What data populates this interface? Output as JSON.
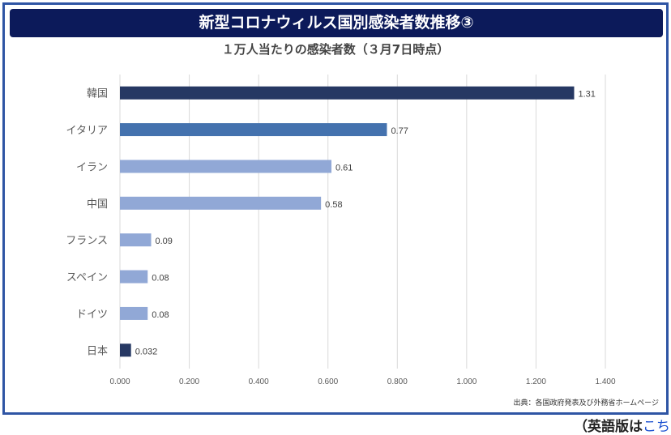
{
  "title": "新型コロナウィルス国別感染者数推移③",
  "footer": {
    "text": "（英語版は",
    "link": "こちら"
  },
  "chart_data": {
    "type": "bar",
    "orientation": "horizontal",
    "title": "１万人当たりの感染者数（３月7日時点）",
    "categories": [
      "韓国",
      "イタリア",
      "イラン",
      "中国",
      "フランス",
      "スペイン",
      "ドイツ",
      "日本"
    ],
    "values": [
      1.31,
      0.77,
      0.61,
      0.58,
      0.09,
      0.08,
      0.08,
      0.032
    ],
    "data_labels": [
      "1.31",
      "0.77",
      "0.61",
      "0.58",
      "0.09",
      "0.08",
      "0.08",
      "0.032"
    ],
    "bar_colors": [
      "#263863",
      "#4472ae",
      "#91a8d6",
      "#91a8d6",
      "#91a8d6",
      "#91a8d6",
      "#91a8d6",
      "#263863"
    ],
    "xlim": [
      0,
      1.4
    ],
    "xticks": [
      "0.000",
      "0.200",
      "0.400",
      "0.600",
      "0.800",
      "1.000",
      "1.200",
      "1.400"
    ],
    "grid": true,
    "source": "出典：各国政府発表及び外務省ホームページ"
  }
}
